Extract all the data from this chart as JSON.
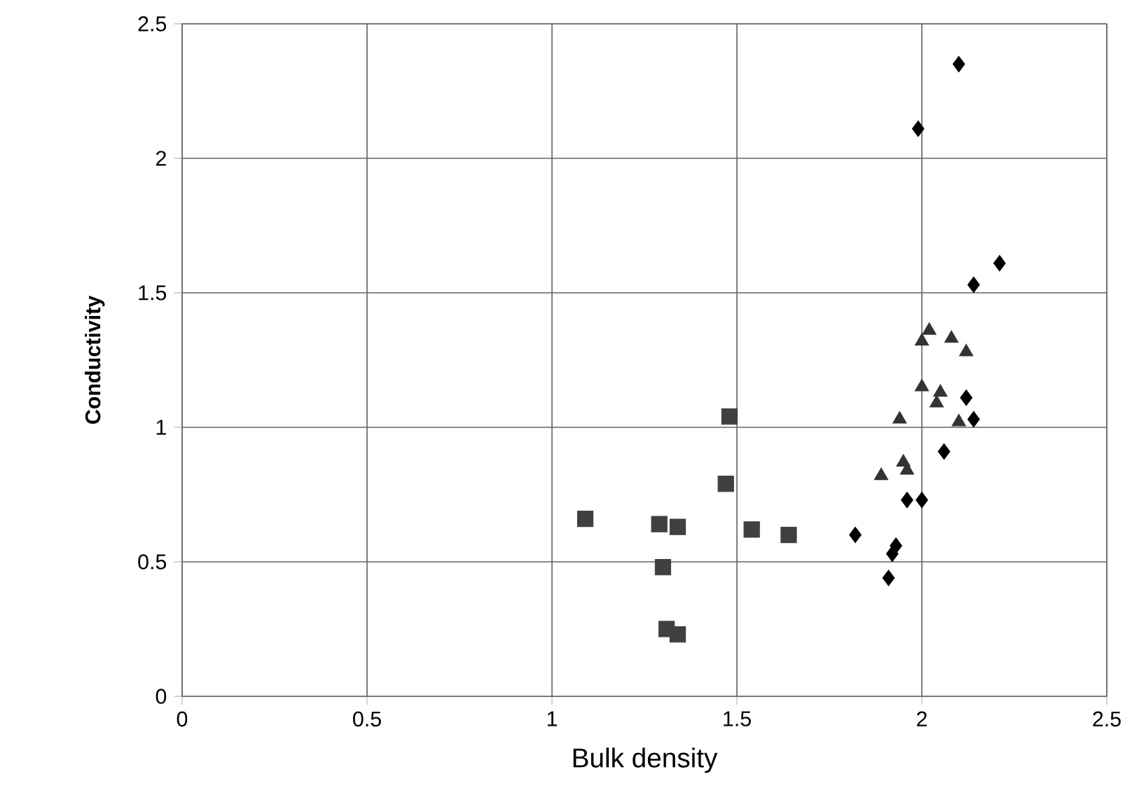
{
  "chart_data": {
    "type": "scatter",
    "xlabel": "Bulk density",
    "ylabel": "Conductivity",
    "xlim": [
      0,
      2.5
    ],
    "ylim": [
      0,
      2.5
    ],
    "xticks": [
      0,
      0.5,
      1,
      1.5,
      2,
      2.5
    ],
    "yticks": [
      0,
      0.5,
      1,
      1.5,
      2,
      2.5
    ],
    "grid": true,
    "series": [
      {
        "color": "#000000",
        "marker": "diamond",
        "x": [
          1.82,
          1.93,
          1.92,
          1.91,
          1.96,
          2.0,
          2.06,
          2.1,
          1.99,
          2.21,
          2.14,
          2.12,
          2.14
        ],
        "values": [
          0.6,
          0.56,
          0.53,
          0.44,
          0.73,
          0.73,
          0.91,
          2.35,
          2.11,
          1.61,
          1.53,
          1.11,
          1.03
        ]
      },
      {
        "color": "#404040",
        "marker": "square",
        "x": [
          1.48,
          1.47,
          1.09,
          1.29,
          1.34,
          1.54,
          1.64,
          1.3,
          1.31,
          1.34
        ],
        "values": [
          1.04,
          0.79,
          0.66,
          0.64,
          0.63,
          0.62,
          0.6,
          0.48,
          0.25,
          0.23
        ]
      },
      {
        "color": "#333333",
        "marker": "triangle",
        "x": [
          1.94,
          1.95,
          1.96,
          1.89,
          2.02,
          2.0,
          2.08,
          2.12,
          2.0,
          2.05,
          2.04,
          2.1
        ],
        "values": [
          1.03,
          0.87,
          0.84,
          0.82,
          1.36,
          1.32,
          1.33,
          1.28,
          1.15,
          1.13,
          1.09,
          1.02
        ]
      }
    ]
  }
}
